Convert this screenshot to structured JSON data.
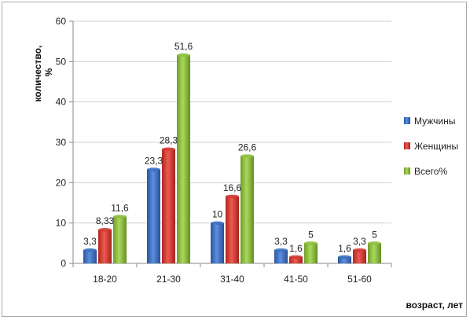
{
  "chart_data": {
    "type": "bar",
    "title": "",
    "xlabel": "возраст, лет",
    "ylabel": "количество, %",
    "ylabel_lines": [
      "количество,",
      "%"
    ],
    "ylim": [
      0,
      60
    ],
    "yticks": [
      0,
      10,
      20,
      30,
      40,
      50,
      60
    ],
    "grid": true,
    "legend_position": "right",
    "categories": [
      "18-20",
      "21-30",
      "31-40",
      "41-50",
      "51-60"
    ],
    "series": [
      {
        "name": "Мужчины",
        "color": "#3c6fc0",
        "values": [
          3.3,
          23.3,
          10,
          3.3,
          1.6
        ],
        "labels": [
          "3,3",
          "23,3",
          "10",
          "3,3",
          "1,6"
        ]
      },
      {
        "name": "Женщины",
        "color": "#d03a33",
        "values": [
          8.33,
          28.3,
          16.6,
          1.6,
          3.3
        ],
        "labels": [
          "8,33",
          "28,3",
          "16,6",
          "1,6",
          "3,3"
        ]
      },
      {
        "name": "Всего%",
        "color": "#8cbf3f",
        "values": [
          11.6,
          51.6,
          26.6,
          5,
          5
        ],
        "labels": [
          "11,6",
          "51,6",
          "26,6",
          "5",
          "5"
        ]
      }
    ]
  }
}
